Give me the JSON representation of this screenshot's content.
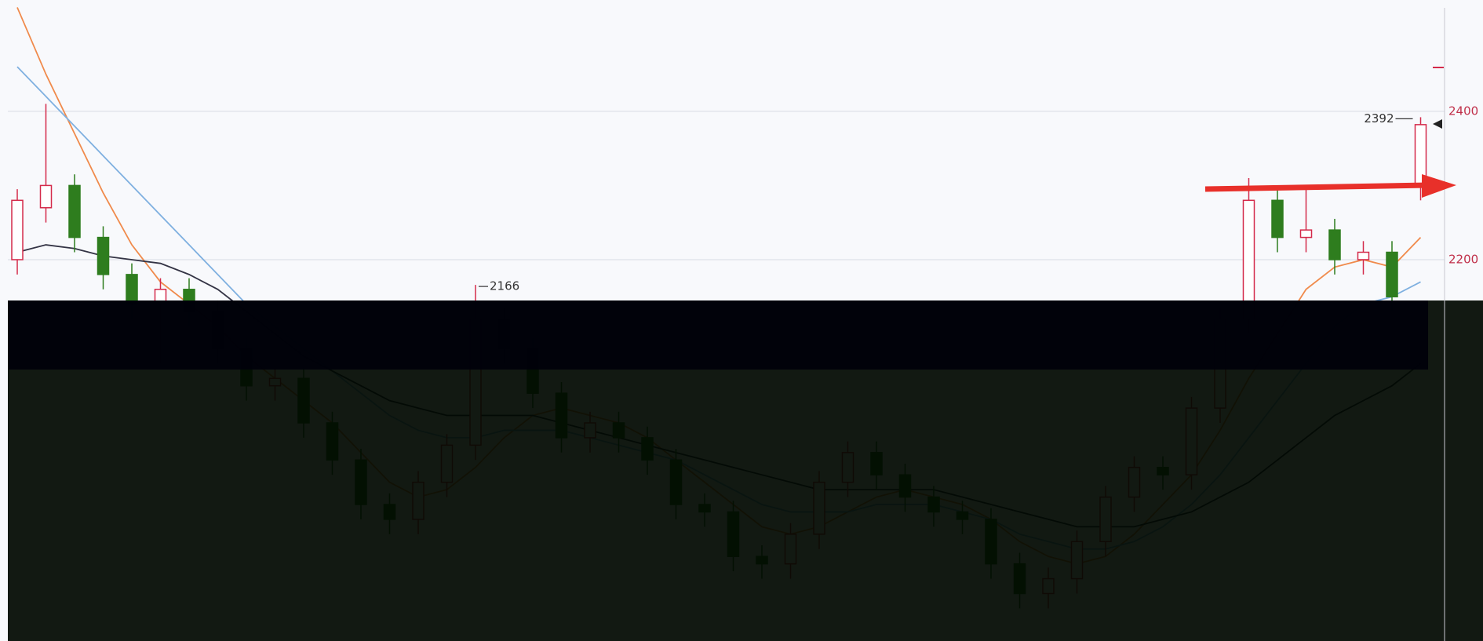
{
  "chart_data": {
    "type": "candlestick",
    "ylim": [
      1686,
      2550
    ],
    "yticks": [
      2200,
      2400
    ],
    "grid": true,
    "up_color": "#d42a4a",
    "down_color": "#2e7d1e",
    "annotations": [
      "2392",
      "2166"
    ],
    "candles": {
      "open": [
        2200,
        2270,
        2300,
        2230,
        2180,
        2140,
        2160,
        2130,
        2080,
        2030,
        2040,
        1980,
        1930,
        1870,
        1850,
        1900,
        1950,
        2120,
        2080,
        2020,
        1960,
        1980,
        1960,
        1930,
        1870,
        1860,
        1800,
        1790,
        1830,
        1900,
        1940,
        1910,
        1880,
        1860,
        1850,
        1790,
        1750,
        1770,
        1820,
        1880,
        1920,
        1910,
        2000,
        2120,
        2280,
        2230,
        2240,
        2200,
        2210,
        2300
      ],
      "high": [
        2295,
        2410,
        2315,
        2245,
        2195,
        2175,
        2175,
        2145,
        2095,
        2055,
        2055,
        1995,
        1945,
        1885,
        1915,
        1965,
        2166,
        2135,
        2095,
        2035,
        1995,
        1995,
        1975,
        1945,
        1885,
        1875,
        1815,
        1845,
        1915,
        1955,
        1955,
        1925,
        1895,
        1875,
        1865,
        1805,
        1785,
        1835,
        1895,
        1935,
        1935,
        2015,
        2135,
        2310,
        2295,
        2300,
        2255,
        2225,
        2225,
        2392
      ],
      "low": [
        2180,
        2250,
        2210,
        2160,
        2120,
        2060,
        2110,
        2060,
        2010,
        2010,
        1960,
        1910,
        1850,
        1830,
        1830,
        1880,
        1930,
        2060,
        2000,
        1940,
        1940,
        1940,
        1910,
        1850,
        1840,
        1780,
        1770,
        1770,
        1810,
        1880,
        1890,
        1860,
        1840,
        1830,
        1770,
        1730,
        1730,
        1750,
        1800,
        1860,
        1890,
        1890,
        1980,
        2100,
        2210,
        2210,
        2180,
        2180,
        2130,
        2280
      ],
      "close": [
        2280,
        2300,
        2230,
        2180,
        2140,
        2160,
        2130,
        2080,
        2030,
        2040,
        1980,
        1930,
        1870,
        1850,
        1900,
        1950,
        2120,
        2080,
        2020,
        1960,
        1980,
        1960,
        1930,
        1870,
        1860,
        1800,
        1790,
        1830,
        1900,
        1940,
        1910,
        1880,
        1860,
        1850,
        1790,
        1750,
        1770,
        1820,
        1880,
        1920,
        1910,
        2000,
        2120,
        2280,
        2230,
        2240,
        2200,
        2210,
        2150,
        2382
      ]
    },
    "series": [
      {
        "color": "#f08a4b",
        "values": [
          2540,
          2450,
          2370,
          2290,
          2220,
          2170,
          2140,
          2110,
          2070,
          2040,
          2010,
          1980,
          1940,
          1900,
          1880,
          1890,
          1920,
          1960,
          1990,
          2000,
          1990,
          1980,
          1960,
          1930,
          1900,
          1870,
          1840,
          1830,
          1840,
          1860,
          1880,
          1890,
          1880,
          1870,
          1850,
          1820,
          1800,
          1790,
          1800,
          1830,
          1870,
          1910,
          1970,
          2040,
          2100,
          2160,
          2190,
          2200,
          2190,
          2230
        ]
      },
      {
        "color": "#7fb0e0",
        "values": [
          2460,
          2420,
          2380,
          2340,
          2300,
          2260,
          2220,
          2180,
          2140,
          2110,
          2080,
          2050,
          2020,
          1990,
          1970,
          1960,
          1960,
          1970,
          1970,
          1970,
          1960,
          1950,
          1940,
          1930,
          1910,
          1890,
          1870,
          1860,
          1860,
          1860,
          1870,
          1870,
          1870,
          1860,
          1850,
          1830,
          1820,
          1810,
          1810,
          1820,
          1840,
          1870,
          1910,
          1960,
          2010,
          2060,
          2110,
          2140,
          2150,
          2170
        ]
      },
      {
        "color": "#333344",
        "values": [
          2210,
          2220,
          2215,
          2205,
          2200,
          2195,
          2180,
          2160,
          2130,
          2100,
          2070,
          2050,
          2030,
          2010,
          2000,
          1990,
          1990,
          1990,
          1990,
          1980,
          1970,
          1960,
          1950,
          1940,
          1930,
          1920,
          1910,
          1900,
          1890,
          1890,
          1890,
          1890,
          1890,
          1880,
          1870,
          1860,
          1850,
          1840,
          1840,
          1840,
          1850,
          1860,
          1880,
          1900,
          1930,
          1960,
          1990,
          2010,
          2030,
          2060
        ]
      }
    ]
  }
}
